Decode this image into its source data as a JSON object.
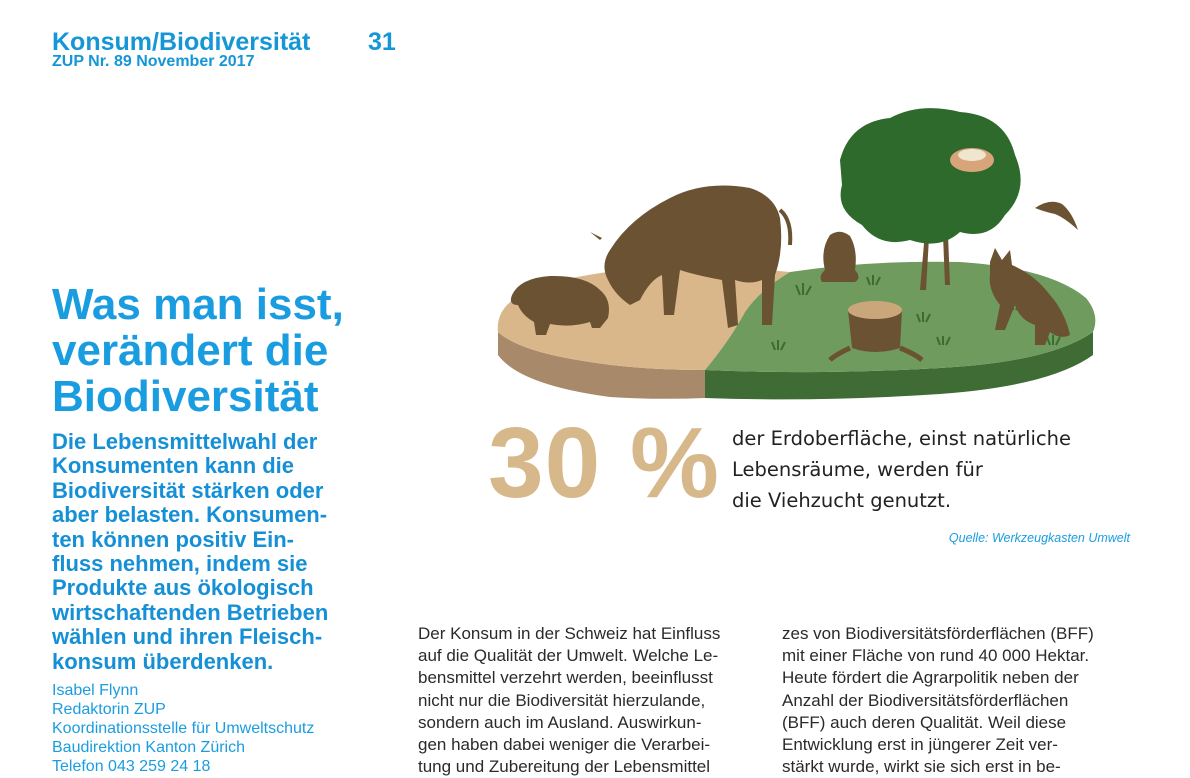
{
  "header": {
    "section": "Konsum/Biodiversität",
    "page_number": "31",
    "issue": "ZUP Nr. 89 November 2017"
  },
  "article": {
    "headline_lines": [
      "Was man isst,",
      "verändert die",
      "Biodiversität"
    ],
    "lead_lines": [
      "Die Lebensmittelwahl der",
      "Konsumenten kann die",
      "Biodiversität stärken oder",
      "aber belasten. Konsumen-",
      "ten können positiv Ein-",
      "fluss nehmen, indem sie",
      "Produkte aus ökologisch",
      "wirtschaftenden Betrieben",
      "wählen und ihren Fleisch-",
      "konsum überdenken."
    ],
    "author_lines": [
      "Isabel Flynn",
      "Redaktorin ZUP",
      "Koordinationsstelle für Umweltschutz",
      "Baudirektion Kanton Zürich",
      "Telefon 043 259 24 18"
    ],
    "body_col1": [
      "Der Konsum in der Schweiz hat Einfluss",
      "auf die Qualität der Umwelt. Welche Le-",
      "bensmittel verzehrt werden, beeinflusst",
      "nicht nur die Biodiversität hierzulande,",
      "sondern auch im Ausland. Auswirkun-",
      "gen haben dabei weniger die Verarbei-",
      "tung und Zubereitung der Lebensmittel"
    ],
    "body_col2": [
      "zes von Biodiversitätsförderflächen (BFF)",
      "mit einer Fläche von rund 40 000 Hektar.",
      "Heute fördert die Agrarpolitik neben der",
      "Anzahl der Biodiversitätsförderflächen",
      "(BFF) auch deren Qualität. Weil diese",
      "Entwicklung erst in jüngerer Zeit ver-",
      "stärkt wurde, wirkt sie sich erst in be-"
    ]
  },
  "infographic": {
    "percent": "30 %",
    "statement_lines": [
      "der Erdoberfläche, einst natürliche",
      "Lebensräume, werden für",
      "die Viehzucht genutzt."
    ],
    "source": "Quelle: Werkzeugkasten Umwelt"
  },
  "colors": {
    "accent_blue": "#1a9de0",
    "percent_tan": "#d7b88a",
    "land_tan": "#d9b78a",
    "land_green": "#6f9b5e",
    "animal_brown": "#6b5232"
  }
}
